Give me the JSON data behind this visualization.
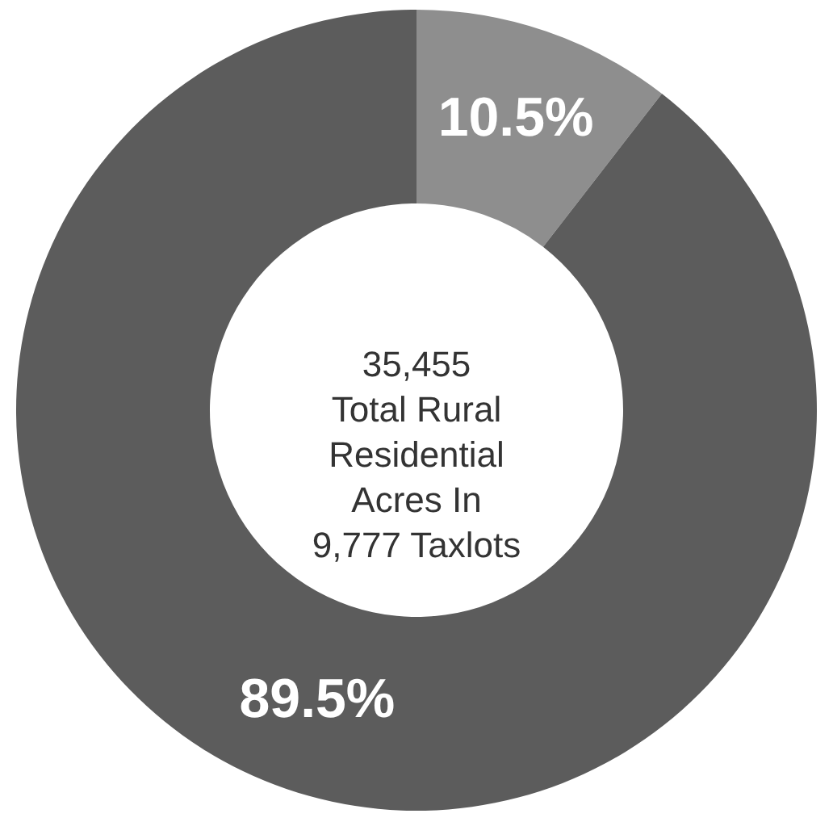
{
  "chart_data": {
    "type": "donut",
    "categories": [
      null,
      null
    ],
    "values": [
      10.5,
      89.5
    ],
    "colors": [
      "#8e8e8e",
      "#5c5c5c"
    ],
    "value_labels": [
      "10.5%",
      "89.5%"
    ],
    "annotations": [
      "35,455\nTotal Rural\nResidential\nAcres In\n9,777 Taxlots"
    ]
  }
}
